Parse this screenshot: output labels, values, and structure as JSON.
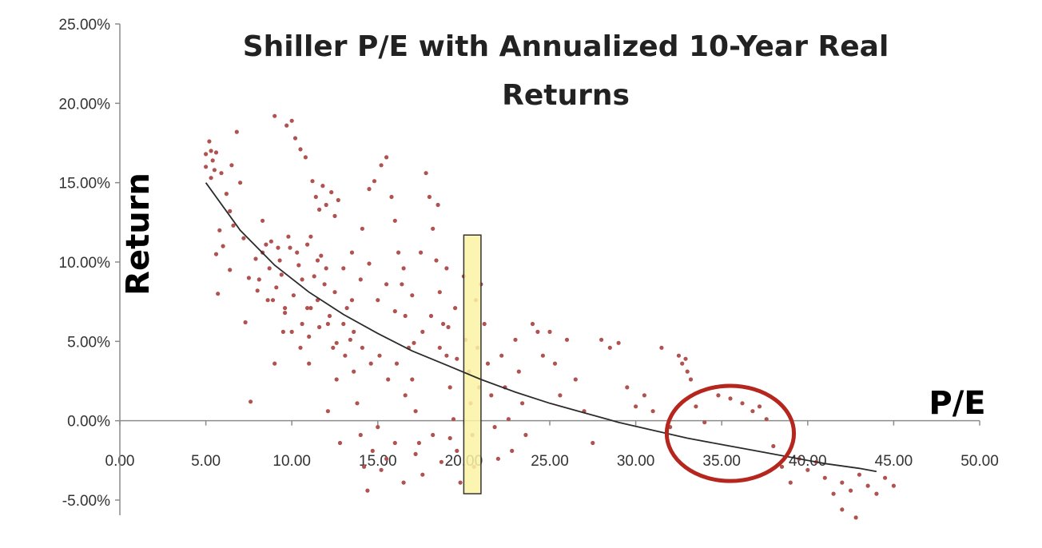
{
  "chart_data": {
    "type": "scatter",
    "title_lines": [
      "Shiller P/E with Annualized 10-Year Real",
      "Returns"
    ],
    "xlabel": "P/E",
    "ylabel": "Return",
    "xlim": [
      0,
      50
    ],
    "ylim": [
      -5,
      25
    ],
    "x_ticks": [
      "0.00",
      "5.00",
      "10.00",
      "15.00",
      "20.00",
      "25.00",
      "30.00",
      "35.00",
      "40.00",
      "45.00",
      "50.00"
    ],
    "y_ticks": [
      "25.00%",
      "20.00%",
      "15.00%",
      "10.00%",
      "5.00%",
      "0.00%",
      "-5.00%"
    ],
    "y_tick_values": [
      25,
      20,
      15,
      10,
      5,
      0,
      -5
    ],
    "grid": false,
    "legend": "none",
    "colors": {
      "points": "#b0524f",
      "trendline": "#2b2b2b",
      "highlight_fill": "#fbf3a3",
      "highlight_stroke": "#333333",
      "circle": "#b5271e"
    },
    "series": [
      {
        "points": [
          [
            5.0,
            16.0
          ],
          [
            5.0,
            16.8
          ],
          [
            5.2,
            17.6
          ],
          [
            5.3,
            17.0
          ],
          [
            5.4,
            16.4
          ],
          [
            5.5,
            15.8
          ],
          [
            5.3,
            15.3
          ],
          [
            5.6,
            16.9
          ],
          [
            5.9,
            15.6
          ],
          [
            6.2,
            14.3
          ],
          [
            6.5,
            16.1
          ],
          [
            6.8,
            18.2
          ],
          [
            6.4,
            13.2
          ],
          [
            7.0,
            15.0
          ],
          [
            6.6,
            12.3
          ],
          [
            6.0,
            11.0
          ],
          [
            5.8,
            12.0
          ],
          [
            5.6,
            10.5
          ],
          [
            5.7,
            8.0
          ],
          [
            6.4,
            9.5
          ],
          [
            7.2,
            11.5
          ],
          [
            7.5,
            9.0
          ],
          [
            7.3,
            6.2
          ],
          [
            7.6,
            1.2
          ],
          [
            7.9,
            10.2
          ],
          [
            8.0,
            8.2
          ],
          [
            8.3,
            12.6
          ],
          [
            8.5,
            11.1
          ],
          [
            8.7,
            9.6
          ],
          [
            8.9,
            7.6
          ],
          [
            9.0,
            19.2
          ],
          [
            9.2,
            10.9
          ],
          [
            9.4,
            9.2
          ],
          [
            9.6,
            6.8
          ],
          [
            9.8,
            11.6
          ],
          [
            9.5,
            5.6
          ],
          [
            9.0,
            3.6
          ],
          [
            9.7,
            18.6
          ],
          [
            10.0,
            18.9
          ],
          [
            10.2,
            17.8
          ],
          [
            10.5,
            17.1
          ],
          [
            10.8,
            16.6
          ],
          [
            10.3,
            10.6
          ],
          [
            10.6,
            8.9
          ],
          [
            10.9,
            7.1
          ],
          [
            11.0,
            5.3
          ],
          [
            11.2,
            15.1
          ],
          [
            11.4,
            14.1
          ],
          [
            11.6,
            13.3
          ],
          [
            11.8,
            14.8
          ],
          [
            12.0,
            13.6
          ],
          [
            12.3,
            14.4
          ],
          [
            12.5,
            12.9
          ],
          [
            12.7,
            13.9
          ],
          [
            11.1,
            11.6
          ],
          [
            11.5,
            10.1
          ],
          [
            11.9,
            8.6
          ],
          [
            12.2,
            6.6
          ],
          [
            12.4,
            4.6
          ],
          [
            12.6,
            2.6
          ],
          [
            12.1,
            0.6
          ],
          [
            12.8,
            -1.4
          ],
          [
            13.0,
            9.6
          ],
          [
            13.2,
            7.1
          ],
          [
            13.4,
            5.1
          ],
          [
            13.6,
            3.1
          ],
          [
            13.8,
            1.1
          ],
          [
            14.0,
            -0.9
          ],
          [
            14.2,
            -2.9
          ],
          [
            14.4,
            -4.4
          ],
          [
            13.5,
            10.6
          ],
          [
            14.1,
            12.1
          ],
          [
            14.5,
            14.6
          ],
          [
            14.8,
            15.1
          ],
          [
            15.2,
            16.1
          ],
          [
            15.5,
            16.6
          ],
          [
            15.8,
            14.1
          ],
          [
            16.0,
            12.6
          ],
          [
            16.2,
            10.6
          ],
          [
            16.4,
            8.6
          ],
          [
            16.6,
            6.6
          ],
          [
            16.8,
            4.6
          ],
          [
            17.0,
            2.6
          ],
          [
            17.2,
            0.6
          ],
          [
            17.4,
            -1.4
          ],
          [
            17.6,
            -3.4
          ],
          [
            17.8,
            15.6
          ],
          [
            18.0,
            14.1
          ],
          [
            18.2,
            12.1
          ],
          [
            18.4,
            10.1
          ],
          [
            18.6,
            8.1
          ],
          [
            18.8,
            6.1
          ],
          [
            19.0,
            4.1
          ],
          [
            19.2,
            2.1
          ],
          [
            19.4,
            0.1
          ],
          [
            19.6,
            -1.9
          ],
          [
            19.8,
            -3.9
          ],
          [
            18.5,
            13.6
          ],
          [
            19.0,
            9.6
          ],
          [
            19.5,
            7.1
          ],
          [
            20.0,
            9.1
          ],
          [
            20.1,
            5.1
          ],
          [
            20.3,
            3.1
          ],
          [
            20.4,
            1.1
          ],
          [
            20.5,
            -0.9
          ],
          [
            20.6,
            -2.9
          ],
          [
            20.7,
            7.6
          ],
          [
            20.8,
            4.6
          ],
          [
            20.9,
            2.1
          ],
          [
            21.0,
            8.6
          ],
          [
            21.2,
            6.1
          ],
          [
            21.4,
            3.6
          ],
          [
            21.6,
            1.6
          ],
          [
            21.8,
            -0.4
          ],
          [
            22.0,
            -2.4
          ],
          [
            22.2,
            4.1
          ],
          [
            22.4,
            2.1
          ],
          [
            22.6,
            0.1
          ],
          [
            22.8,
            -1.9
          ],
          [
            23.0,
            5.1
          ],
          [
            23.2,
            3.1
          ],
          [
            23.4,
            1.1
          ],
          [
            23.6,
            -0.9
          ],
          [
            24.0,
            6.1
          ],
          [
            24.3,
            5.6
          ],
          [
            24.6,
            4.1
          ],
          [
            25.0,
            5.6
          ],
          [
            25.3,
            3.6
          ],
          [
            25.6,
            1.6
          ],
          [
            26.0,
            5.1
          ],
          [
            26.5,
            2.6
          ],
          [
            27.0,
            0.6
          ],
          [
            27.5,
            -1.4
          ],
          [
            28.0,
            5.1
          ],
          [
            28.5,
            4.6
          ],
          [
            29.0,
            4.9
          ],
          [
            29.5,
            2.1
          ],
          [
            30.0,
            0.9
          ],
          [
            30.5,
            1.6
          ],
          [
            31.0,
            0.6
          ],
          [
            31.5,
            4.6
          ],
          [
            32.0,
            -0.4
          ],
          [
            32.5,
            4.1
          ],
          [
            32.7,
            3.6
          ],
          [
            33.0,
            3.1
          ],
          [
            33.2,
            2.6
          ],
          [
            32.9,
            3.9
          ],
          [
            33.5,
            0.9
          ],
          [
            34.0,
            -0.1
          ],
          [
            34.8,
            1.6
          ],
          [
            35.5,
            1.4
          ],
          [
            36.2,
            1.1
          ],
          [
            36.8,
            0.6
          ],
          [
            37.2,
            0.9
          ],
          [
            37.6,
            0.1
          ],
          [
            38.0,
            -1.6
          ],
          [
            38.5,
            -2.9
          ],
          [
            39.0,
            -3.9
          ],
          [
            39.5,
            -2.4
          ],
          [
            40.0,
            -3.1
          ],
          [
            40.5,
            -2.6
          ],
          [
            41.0,
            -3.6
          ],
          [
            41.5,
            -4.6
          ],
          [
            42.0,
            -3.9
          ],
          [
            42.5,
            -4.4
          ],
          [
            43.0,
            -3.4
          ],
          [
            43.5,
            -4.1
          ],
          [
            44.0,
            -4.6
          ],
          [
            44.5,
            -3.6
          ],
          [
            45.0,
            -4.1
          ],
          [
            42.8,
            -6.1
          ],
          [
            42.0,
            -5.6
          ],
          [
            8.3,
            10.6
          ],
          [
            8.8,
            11.3
          ],
          [
            9.3,
            10.1
          ],
          [
            9.9,
            10.9
          ],
          [
            10.4,
            9.8
          ],
          [
            10.9,
            11.1
          ],
          [
            11.3,
            9.1
          ],
          [
            11.7,
            10.4
          ],
          [
            8.1,
            8.9
          ],
          [
            8.6,
            7.6
          ],
          [
            9.1,
            8.4
          ],
          [
            9.6,
            7.1
          ],
          [
            10.1,
            7.9
          ],
          [
            10.6,
            6.1
          ],
          [
            11.1,
            7.1
          ],
          [
            11.6,
            5.9
          ],
          [
            12.1,
            6.1
          ],
          [
            12.6,
            4.9
          ],
          [
            13.1,
            4.1
          ],
          [
            13.6,
            5.6
          ],
          [
            14.1,
            4.6
          ],
          [
            14.6,
            3.6
          ],
          [
            15.1,
            4.1
          ],
          [
            15.6,
            2.6
          ],
          [
            16.1,
            3.6
          ],
          [
            16.6,
            1.6
          ],
          [
            17.1,
            4.9
          ],
          [
            17.6,
            5.6
          ],
          [
            18.1,
            6.6
          ],
          [
            18.6,
            4.6
          ],
          [
            19.1,
            5.9
          ],
          [
            19.6,
            3.9
          ],
          [
            15.0,
            7.6
          ],
          [
            15.5,
            8.6
          ],
          [
            16.0,
            6.9
          ],
          [
            16.5,
            9.6
          ],
          [
            17.0,
            7.9
          ],
          [
            17.5,
            10.6
          ],
          [
            14.5,
            9.9
          ],
          [
            14.0,
            8.9
          ],
          [
            13.5,
            7.6
          ],
          [
            13.0,
            6.1
          ],
          [
            12.5,
            8.1
          ],
          [
            12.0,
            9.6
          ],
          [
            11.5,
            7.6
          ],
          [
            11.0,
            3.6
          ],
          [
            10.5,
            4.6
          ],
          [
            10.0,
            5.6
          ],
          [
            15.0,
            -0.4
          ],
          [
            15.5,
            -2.4
          ],
          [
            16.0,
            -1.4
          ],
          [
            16.5,
            -3.9
          ],
          [
            14.7,
            -1.9
          ],
          [
            15.2,
            -3.1
          ],
          [
            17.2,
            -2.1
          ],
          [
            18.2,
            -0.9
          ],
          [
            18.7,
            -2.6
          ],
          [
            19.2,
            -1.1
          ]
        ]
      }
    ],
    "trendline": {
      "type": "power",
      "x": [
        5,
        7,
        9,
        11,
        13,
        15,
        17,
        19,
        21,
        23,
        25,
        27,
        29,
        31,
        33,
        35,
        37,
        39,
        41,
        43,
        44
      ],
      "y": [
        15.0,
        12.0,
        9.8,
        8.1,
        6.7,
        5.5,
        4.4,
        3.5,
        2.6,
        1.8,
        1.1,
        0.5,
        -0.1,
        -0.6,
        -1.1,
        -1.5,
        -1.9,
        -2.3,
        -2.7,
        -3.0,
        -3.2
      ]
    },
    "annotations": [
      {
        "kind": "highlight-rectangle",
        "x_range": [
          20.0,
          21.0
        ],
        "y_range": [
          -4.6,
          11.7
        ]
      },
      {
        "kind": "circle",
        "center": [
          35.5,
          -0.8
        ],
        "radius_x": 3.7,
        "radius_y": 3.0
      }
    ]
  }
}
